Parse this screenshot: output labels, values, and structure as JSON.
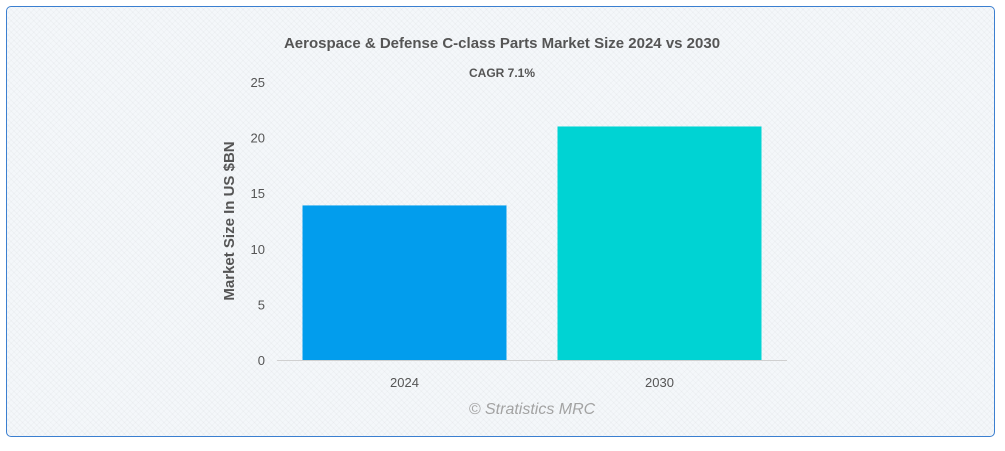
{
  "chart_data": {
    "type": "bar",
    "title": "Aerospace & Defense C-class Parts Market Size 2024 vs 2030",
    "subtitle": "CAGR 7.1%",
    "xlabel": "",
    "ylabel": "Market Size In US $BN",
    "categories": [
      "2024",
      "2030"
    ],
    "values": [
      13.9,
      21.0
    ],
    "bar_colors": [
      "#029ded",
      "#00d3d3"
    ],
    "ylim": [
      0,
      25
    ],
    "yticks": [
      0,
      5,
      10,
      15,
      20,
      25
    ],
    "grid": false,
    "legend": "none"
  },
  "credit": "© Stratistics MRC",
  "colors": {
    "border": "#3b7fd0",
    "text": "#555555",
    "axis": "#d0d0d0"
  }
}
